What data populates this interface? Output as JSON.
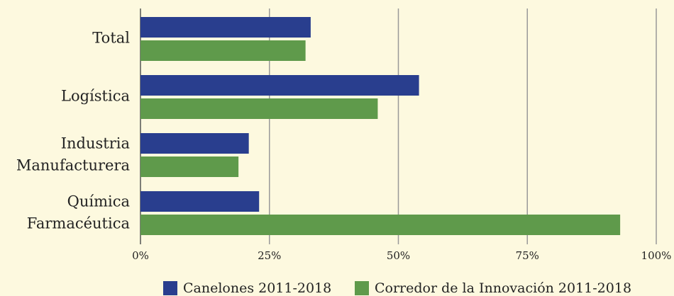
{
  "chart_data": {
    "type": "hbar",
    "categories": [
      "Total",
      "Logística",
      "Industria Manufacturera",
      "Química Farmacéutica"
    ],
    "series": [
      {
        "name": "Canelones 2011-2018",
        "color": "#293e8e",
        "values": [
          33,
          54,
          21,
          23
        ]
      },
      {
        "name": "Corredor de la Innovación 2011-2018",
        "color": "#5f9a4b",
        "values": [
          32,
          46,
          19,
          93
        ]
      }
    ],
    "xlim": [
      0,
      100
    ],
    "xticks": [
      {
        "value": 0,
        "label": "0%"
      },
      {
        "value": 25,
        "label": "25%"
      },
      {
        "value": 50,
        "label": "50%"
      },
      {
        "value": 75,
        "label": "75%"
      },
      {
        "value": 100,
        "label": "100%"
      }
    ],
    "grid": true,
    "legend": "bottom"
  }
}
